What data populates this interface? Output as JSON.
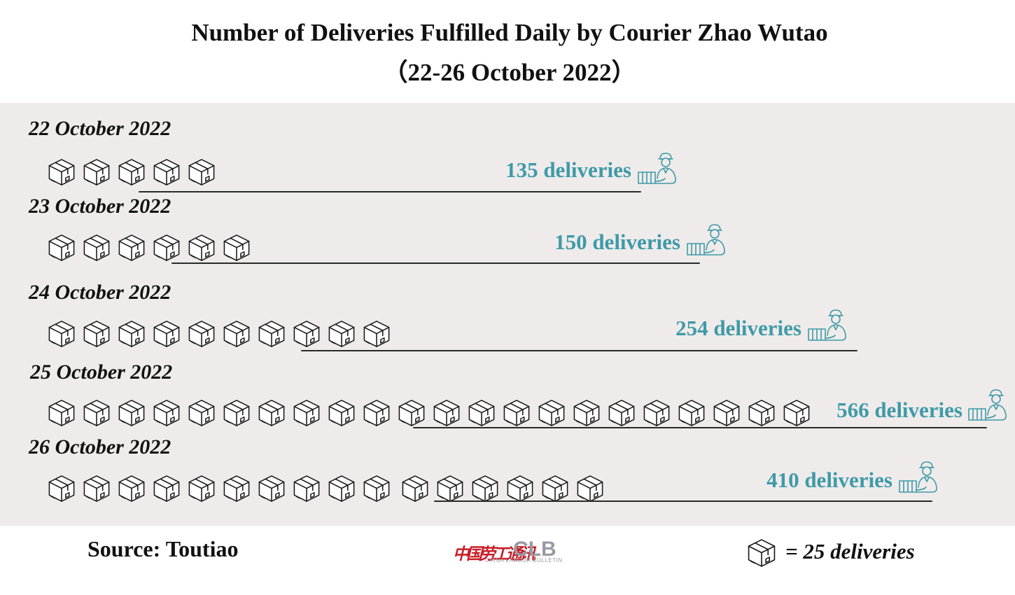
{
  "title_line1": "Number of Deliveries Fulfilled Daily by Courier Zhao Wutao",
  "title_line2": "（22-26 October 2022）",
  "colors": {
    "value_text": "#3f9aa8",
    "panel_bg": "#eeebea",
    "logo_red": "#c81e28",
    "logo_gray": "#9a9aa6"
  },
  "icons": {
    "unit": "package-box-icon",
    "row_end": "courier-carrying-box-icon"
  },
  "chart_data": {
    "type": "pictograph",
    "title": "Number of Deliveries Fulfilled Daily by Courier Zhao Wutao（22-26 October 2022）",
    "unit_value": 25,
    "rows": [
      {
        "date": "22 October 2022",
        "value": 135,
        "label": "135 deliveries",
        "icons": 5
      },
      {
        "date": "23 October 2022",
        "value": 150,
        "label": "150 deliveries",
        "icons": 6
      },
      {
        "date": "24 October 2022",
        "value": 254,
        "label": "254 deliveries",
        "icons": 10
      },
      {
        "date": "25 October 2022",
        "value": 566,
        "label": "566 deliveries",
        "icons": 22
      },
      {
        "date": "26 October 2022",
        "value": 410,
        "label": "410 deliveries",
        "icons": 16
      }
    ]
  },
  "footer": {
    "source": "Source: Toutiao",
    "logo_cn": "中国劳工通讯",
    "logo_clb": "CLB",
    "logo_sub": "CHINA LABOUR BULLETIN",
    "legend_text": "= 25 deliveries"
  }
}
